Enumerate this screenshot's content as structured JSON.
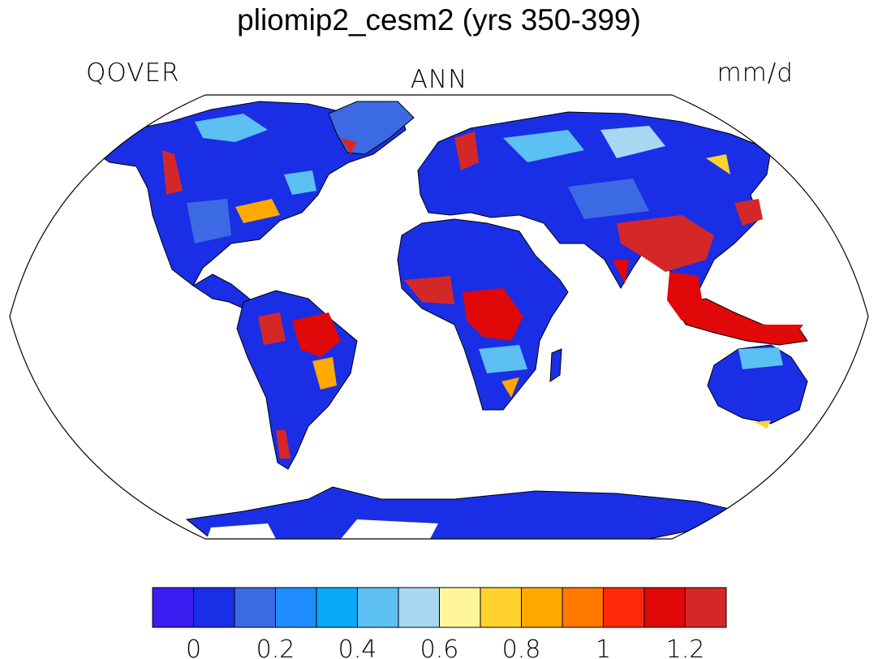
{
  "header": {
    "title": "pliomip2_cesm2 (yrs 350-399)",
    "variable": "QOVER",
    "season": "ANN",
    "units": "mm/d"
  },
  "map": {
    "projection": "Robinson",
    "ocean_color": "#ffffff",
    "land_base_color": "#1a2ee6"
  },
  "colorbar": {
    "colors": [
      "#3a1cf0",
      "#1a2ee6",
      "#3c6ae4",
      "#1e8cff",
      "#0aaaf8",
      "#5cc0f2",
      "#a8d8f0",
      "#fff69a",
      "#ffd22e",
      "#ffa800",
      "#ff7800",
      "#ff2a0a",
      "#e00808",
      "#d42828"
    ],
    "tick_labels": [
      "0",
      "0.2",
      "0.4",
      "0.6",
      "0.8",
      "1",
      "1.2"
    ]
  }
}
